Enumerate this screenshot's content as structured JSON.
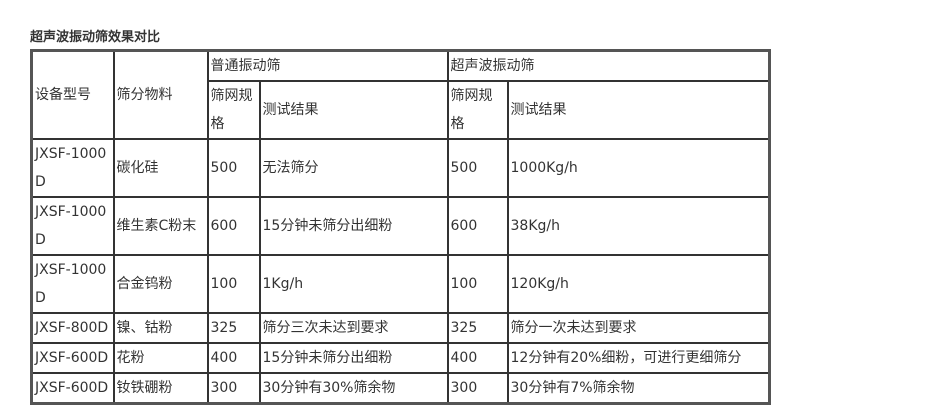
{
  "title": "超声波振动筛效果对比",
  "header": {
    "model": "设备型号",
    "material": "筛分物料",
    "normal_group": "普通振动筛",
    "ultra_group": "超声波振动筛",
    "mesh": "筛网规格",
    "result": "测试结果"
  },
  "rows": [
    {
      "model": "JXSF-1000D",
      "material": "碳化硅",
      "normal_mesh": "500",
      "normal_result": "无法筛分",
      "ultra_mesh": "500",
      "ultra_result": "1000Kg/h"
    },
    {
      "model": "JXSF-1000D",
      "material": "维生素C粉末",
      "normal_mesh": "600",
      "normal_result": "15分钟未筛分出细粉",
      "ultra_mesh": "600",
      "ultra_result": "38Kg/h"
    },
    {
      "model": "JXSF-1000D",
      "material": "合金钨粉",
      "normal_mesh": "100",
      "normal_result": "1Kg/h",
      "ultra_mesh": "100",
      "ultra_result": "120Kg/h"
    },
    {
      "model": "JXSF-800D",
      "material": "镍、钴粉",
      "normal_mesh": "325",
      "normal_result": "筛分三次未达到要求",
      "ultra_mesh": "325",
      "ultra_result": "筛分一次未达到要求"
    },
    {
      "model": "JXSF-600D",
      "material": "花粉",
      "normal_mesh": "400",
      "normal_result": "15分钟未筛分出细粉",
      "ultra_mesh": "400",
      "ultra_result": "12分钟有20%细粉，可进行更细筛分"
    },
    {
      "model": "JXSF-600D",
      "material": "钕铁硼粉",
      "normal_mesh": "300",
      "normal_result": "30分钟有30%筛余物",
      "ultra_mesh": "300",
      "ultra_result": "30分钟有7%筛余物"
    }
  ]
}
